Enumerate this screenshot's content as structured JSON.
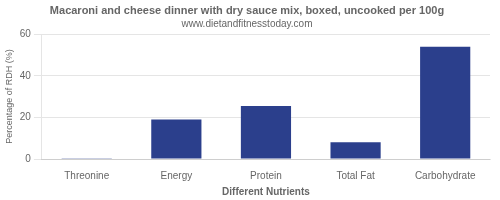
{
  "chart_data": {
    "type": "bar",
    "title": "Macaroni and cheese dinner with dry sauce mix, boxed, uncooked per 100g",
    "subtitle": "www.dietandfitnesstoday.com",
    "xlabel": "Different Nutrients",
    "ylabel": "Percentage of RDH (%)",
    "categories": [
      "Threonine",
      "Energy",
      "Protein",
      "Total Fat",
      "Carbohydrate"
    ],
    "values": [
      0.4,
      19.0,
      25.5,
      8.0,
      54.0
    ],
    "color": "#2b3f8c",
    "ylim": [
      0,
      60
    ],
    "yticks": [
      0,
      20,
      40,
      60
    ],
    "grid": true
  }
}
